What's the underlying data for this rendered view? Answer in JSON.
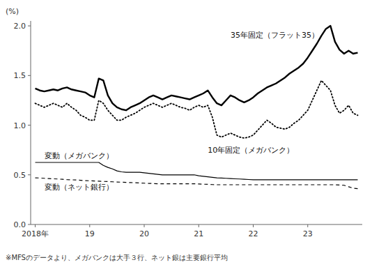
{
  "chart_data": {
    "type": "line",
    "ylabel": "(%)",
    "footnote": "※MFSのデータより、メガバンクは大手３行、ネット銀は主要銀行平均",
    "categories": [
      "2018年",
      null,
      null,
      null,
      null,
      null,
      null,
      null,
      null,
      null,
      null,
      null,
      "19",
      null,
      null,
      null,
      null,
      null,
      null,
      null,
      null,
      null,
      null,
      null,
      "20",
      null,
      null,
      null,
      null,
      null,
      null,
      null,
      null,
      null,
      null,
      null,
      "21",
      null,
      null,
      null,
      null,
      null,
      null,
      null,
      null,
      null,
      null,
      null,
      "22",
      null,
      null,
      null,
      null,
      null,
      null,
      null,
      null,
      null,
      null,
      null,
      "23",
      null,
      null,
      null,
      null,
      null,
      null,
      null,
      null,
      null,
      null,
      null
    ],
    "ylim": [
      0,
      2.05
    ],
    "yticks": [
      {
        "value": 0,
        "label": "0.0"
      },
      0.5,
      {
        "value": 1.0,
        "label": "1.0"
      },
      1.5,
      {
        "value": 2.0,
        "label": "2.0"
      }
    ],
    "grid": false,
    "annotations": [
      {
        "text": "35年固定（フラット35）",
        "x": 43,
        "y": 1.88
      },
      {
        "text": "10年固定（メガバンク）",
        "x": 38,
        "y": 0.72
      },
      {
        "text": "変動（メガバンク）",
        "x": 2,
        "y": 0.67
      },
      {
        "text": "変動（ネット銀行）",
        "x": 2,
        "y": 0.35
      }
    ],
    "series": [
      {
        "color": "black",
        "line_style": "solid",
        "values": [
          1.37,
          1.35,
          1.34,
          1.35,
          1.36,
          1.35,
          1.37,
          1.38,
          1.36,
          1.35,
          1.34,
          1.33,
          1.3,
          1.28,
          1.47,
          1.45,
          1.3,
          1.22,
          1.18,
          1.16,
          1.15,
          1.18,
          1.2,
          1.22,
          1.25,
          1.28,
          1.3,
          1.28,
          1.26,
          1.28,
          1.3,
          1.29,
          1.28,
          1.27,
          1.26,
          1.28,
          1.3,
          1.32,
          1.35,
          1.28,
          1.22,
          1.2,
          1.25,
          1.3,
          1.28,
          1.25,
          1.23,
          1.25,
          1.28,
          1.32,
          1.35,
          1.38,
          1.4,
          1.42,
          1.45,
          1.48,
          1.52,
          1.55,
          1.58,
          1.62,
          1.68,
          1.75,
          1.82,
          1.9,
          1.97,
          2.0,
          1.84,
          1.76,
          1.72,
          1.75,
          1.72,
          1.73
        ]
      },
      {
        "color": "black",
        "line_style": "dotted",
        "values": [
          1.22,
          1.2,
          1.18,
          1.2,
          1.22,
          1.2,
          1.18,
          1.22,
          1.18,
          1.15,
          1.1,
          1.08,
          1.05,
          1.05,
          1.25,
          1.22,
          1.15,
          1.1,
          1.05,
          1.05,
          1.08,
          1.1,
          1.12,
          1.15,
          1.18,
          1.2,
          1.22,
          1.2,
          1.18,
          1.2,
          1.22,
          1.2,
          1.18,
          1.17,
          1.15,
          1.18,
          1.2,
          1.18,
          1.2,
          1.08,
          0.9,
          0.88,
          0.9,
          0.92,
          0.9,
          0.88,
          0.87,
          0.88,
          0.9,
          0.95,
          1.0,
          1.05,
          1.02,
          0.98,
          0.97,
          0.96,
          0.98,
          1.02,
          1.05,
          1.1,
          1.15,
          1.25,
          1.35,
          1.45,
          1.4,
          1.35,
          1.2,
          1.12,
          1.15,
          1.2,
          1.12,
          1.1
        ]
      },
      {
        "color": "black",
        "line_style": "solid",
        "values": [
          0.625,
          0.625,
          0.625,
          0.625,
          0.625,
          0.625,
          0.625,
          0.625,
          0.625,
          0.625,
          0.625,
          0.625,
          0.625,
          0.625,
          0.625,
          0.595,
          0.575,
          0.56,
          0.54,
          0.53,
          0.525,
          0.525,
          0.525,
          0.525,
          0.52,
          0.515,
          0.51,
          0.505,
          0.5,
          0.5,
          0.5,
          0.5,
          0.5,
          0.5,
          0.5,
          0.5,
          0.49,
          0.485,
          0.48,
          0.475,
          0.47,
          0.468,
          0.465,
          0.462,
          0.46,
          0.458,
          0.455,
          0.453,
          0.45,
          0.45,
          0.45,
          0.45,
          0.45,
          0.45,
          0.45,
          0.45,
          0.45,
          0.45,
          0.45,
          0.45,
          0.45,
          0.45,
          0.45,
          0.45,
          0.45,
          0.45,
          0.45,
          0.45,
          0.45,
          0.45,
          0.45,
          0.45
        ]
      },
      {
        "color": "black",
        "line_style": "dashed",
        "values": [
          0.47,
          0.468,
          0.465,
          0.462,
          0.46,
          0.458,
          0.455,
          0.452,
          0.45,
          0.448,
          0.445,
          0.442,
          0.44,
          0.438,
          0.436,
          0.434,
          0.432,
          0.43,
          0.428,
          0.426,
          0.424,
          0.422,
          0.42,
          0.418,
          0.416,
          0.414,
          0.412,
          0.41,
          0.41,
          0.41,
          0.41,
          0.41,
          0.41,
          0.41,
          0.41,
          0.41,
          0.408,
          0.406,
          0.404,
          0.402,
          0.4,
          0.4,
          0.4,
          0.4,
          0.4,
          0.4,
          0.4,
          0.4,
          0.4,
          0.4,
          0.4,
          0.4,
          0.4,
          0.4,
          0.4,
          0.4,
          0.4,
          0.4,
          0.4,
          0.4,
          0.4,
          0.4,
          0.4,
          0.4,
          0.4,
          0.4,
          0.4,
          0.398,
          0.395,
          0.38,
          0.365,
          0.36
        ]
      }
    ]
  }
}
